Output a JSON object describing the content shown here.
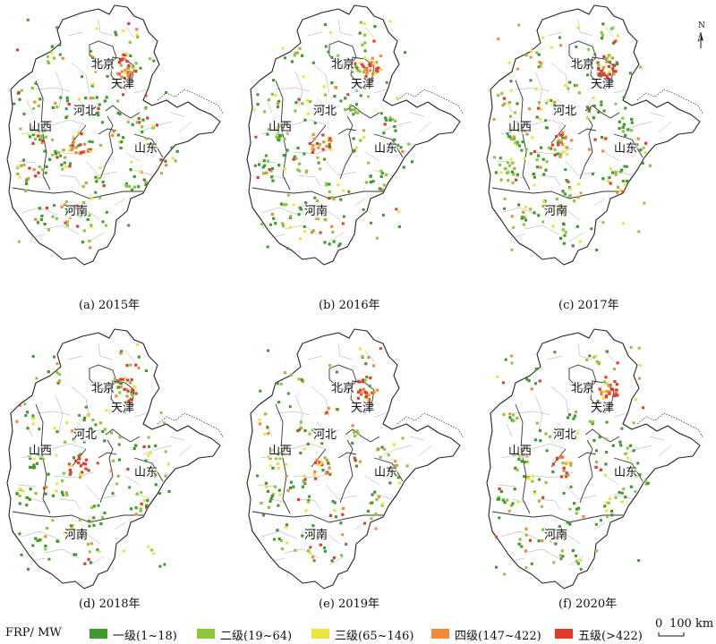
{
  "panels": [
    {
      "caption": "(a) 2015年",
      "seed": 11,
      "density": 1.0
    },
    {
      "caption": "(b) 2016年",
      "seed": 23,
      "density": 0.95
    },
    {
      "caption": "(c) 2017年",
      "seed": 37,
      "density": 1.05
    },
    {
      "caption": "(d) 2018年",
      "seed": 41,
      "density": 0.8
    },
    {
      "caption": "(e) 2019年",
      "seed": 53,
      "density": 0.7
    },
    {
      "caption": "(f) 2020年",
      "seed": 67,
      "density": 0.75
    }
  ],
  "provinces": {
    "beijing": "北京",
    "tianjin": "天津",
    "hebei": "河北",
    "shanxi": "山西",
    "shandong": "山东",
    "henan": "河南"
  },
  "north_arrow": "N",
  "legend": {
    "title": "FRP/ MW",
    "items": [
      {
        "label": "一级(1~18)",
        "color": "#3f9a2e"
      },
      {
        "label": "二级(19~64)",
        "color": "#8cc63f"
      },
      {
        "label": "三级(65~146)",
        "color": "#eee33c"
      },
      {
        "label": "四级(147~422)",
        "color": "#f08a3a"
      },
      {
        "label": "五级(>422)",
        "color": "#e43a2c"
      }
    ]
  },
  "scale_bar": {
    "zero": "0",
    "value": "100 km"
  }
}
